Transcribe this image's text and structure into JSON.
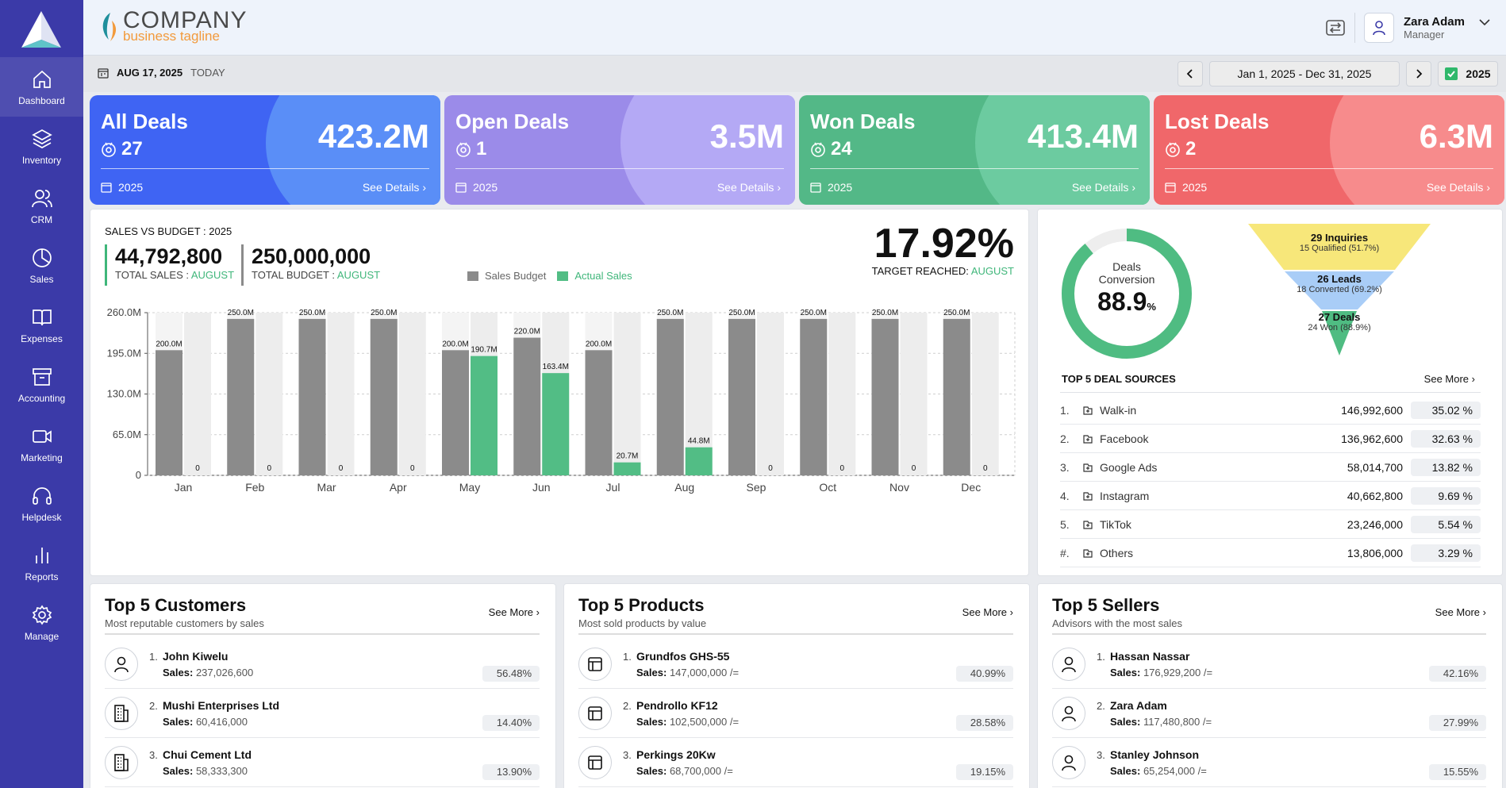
{
  "company": {
    "name": "COMPANY",
    "tagline": "business tagline"
  },
  "user": {
    "name": "Zara Adam",
    "role": "Manager"
  },
  "nav": [
    {
      "label": "Dashboard",
      "icon": "home-icon",
      "active": true
    },
    {
      "label": "Inventory",
      "icon": "layers-icon"
    },
    {
      "label": "CRM",
      "icon": "users-icon"
    },
    {
      "label": "Sales",
      "icon": "pie-chart-icon"
    },
    {
      "label": "Expenses",
      "icon": "book-icon"
    },
    {
      "label": "Accounting",
      "icon": "archive-icon"
    },
    {
      "label": "Marketing",
      "icon": "video-icon"
    },
    {
      "label": "Helpdesk",
      "icon": "headset-icon"
    },
    {
      "label": "Reports",
      "icon": "bar-chart-icon"
    },
    {
      "label": "Manage",
      "icon": "gear-icon"
    }
  ],
  "datebar": {
    "date": "AUG 17, 2025",
    "today": "TODAY",
    "range": "Jan 1, 2025 - Dec 31, 2025",
    "year": "2025"
  },
  "cards": [
    {
      "title": "All Deals",
      "count": "27",
      "amount": "423.2M",
      "year": "2025",
      "details": "See Details"
    },
    {
      "title": "Open Deals",
      "count": "1",
      "amount": "3.5M",
      "year": "2025",
      "details": "See Details"
    },
    {
      "title": "Won Deals",
      "count": "24",
      "amount": "413.4M",
      "year": "2025",
      "details": "See Details"
    },
    {
      "title": "Lost Deals",
      "count": "2",
      "amount": "6.3M",
      "year": "2025",
      "details": "See Details"
    }
  ],
  "sales": {
    "heading": "SALES VS BUDGET : 2025",
    "total_sales": "44,792,800",
    "total_sales_label": "TOTAL SALES :",
    "total_sales_month": "AUGUST",
    "total_budget": "250,000,000",
    "total_budget_label": "TOTAL BUDGET :",
    "total_budget_month": "AUGUST",
    "target": "17.92%",
    "target_label": "TARGET REACHED:",
    "target_month": "AUGUST",
    "legend_budget": "Sales Budget",
    "legend_actual": "Actual Sales"
  },
  "chart_data": {
    "type": "bar",
    "title": "SALES VS BUDGET : 2025",
    "categories": [
      "Jan",
      "Feb",
      "Mar",
      "Apr",
      "May",
      "Jun",
      "Jul",
      "Aug",
      "Sep",
      "Oct",
      "Nov",
      "Dec"
    ],
    "series": [
      {
        "name": "Sales Budget",
        "values": [
          200,
          250,
          250,
          250,
          200,
          220,
          200,
          250,
          250,
          250,
          250,
          250
        ],
        "labels": [
          "200.0M",
          "250.0M",
          "250.0M",
          "250.0M",
          "200.0M",
          "220.0M",
          "200.0M",
          "250.0M",
          "250.0M",
          "250.0M",
          "250.0M",
          "250.0M"
        ]
      },
      {
        "name": "Actual Sales",
        "values": [
          0,
          0,
          0,
          0,
          190.7,
          163.4,
          20.7,
          44.8,
          0,
          0,
          0,
          0
        ],
        "labels": [
          "0",
          "0",
          "0",
          "0",
          "190.7M",
          "163.4M",
          "20.7M",
          "44.8M",
          "0",
          "0",
          "0",
          "0"
        ]
      }
    ],
    "yticks": [
      "0",
      "65.0M",
      "130.0M",
      "195.0M",
      "260.0M"
    ],
    "ylim": [
      0,
      260
    ]
  },
  "conversion": {
    "label1": "Deals",
    "label2": "Conversion",
    "value": "88.9",
    "unit": "%",
    "fraction": 0.889
  },
  "funnel": [
    {
      "title": "29 Inquiries",
      "sub": "15 Qualified (51.7%)"
    },
    {
      "title": "26 Leads",
      "sub": "18 Converted (69.2%)"
    },
    {
      "title": "27 Deals",
      "sub": "24 Won (88.9%)"
    }
  ],
  "sources": {
    "title": "TOP 5 DEAL SOURCES",
    "more": "See More",
    "rows": [
      {
        "n": "1.",
        "name": "Walk-in",
        "value": "146,992,600",
        "pct": "35.02 %"
      },
      {
        "n": "2.",
        "name": "Facebook",
        "value": "136,962,600",
        "pct": "32.63 %"
      },
      {
        "n": "3.",
        "name": "Google Ads",
        "value": "58,014,700",
        "pct": "13.82 %"
      },
      {
        "n": "4.",
        "name": "Instagram",
        "value": "40,662,800",
        "pct": "9.69 %"
      },
      {
        "n": "5.",
        "name": "TikTok",
        "value": "23,246,000",
        "pct": "5.54 %"
      },
      {
        "n": "#.",
        "name": "Others",
        "value": "13,806,000",
        "pct": "3.29 %"
      }
    ]
  },
  "customers": {
    "title": "Top 5 Customers",
    "sub": "Most reputable customers by sales",
    "more": "See More",
    "items": [
      {
        "n": "1.",
        "name": "John Kiwelu",
        "sales": "237,026,600",
        "pct": "56.48%"
      },
      {
        "n": "2.",
        "name": "Mushi Enterprises Ltd",
        "sales": "60,416,000",
        "pct": "14.40%"
      },
      {
        "n": "3.",
        "name": "Chui Cement Ltd",
        "sales": "58,333,300",
        "pct": "13.90%"
      }
    ]
  },
  "products": {
    "title": "Top 5 Products",
    "sub": "Most sold products by value",
    "more": "See More",
    "items": [
      {
        "n": "1.",
        "name": "Grundfos GHS-55",
        "sales": "147,000,000 /=",
        "pct": "40.99%"
      },
      {
        "n": "2.",
        "name": "Pendrollo KF12",
        "sales": "102,500,000 /=",
        "pct": "28.58%"
      },
      {
        "n": "3.",
        "name": "Perkings 20Kw",
        "sales": "68,700,000 /=",
        "pct": "19.15%"
      }
    ]
  },
  "sellers": {
    "title": "Top 5 Sellers",
    "sub": "Advisors with the most sales",
    "more": "See More",
    "items": [
      {
        "n": "1.",
        "name": "Hassan Nassar",
        "sales": "176,929,200 /=",
        "pct": "42.16%"
      },
      {
        "n": "2.",
        "name": "Zara Adam",
        "sales": "117,480,800 /=",
        "pct": "27.99%"
      },
      {
        "n": "3.",
        "name": "Stanley Johnson",
        "sales": "65,254,000 /=",
        "pct": "15.55%"
      }
    ]
  },
  "sales_label": "Sales:"
}
